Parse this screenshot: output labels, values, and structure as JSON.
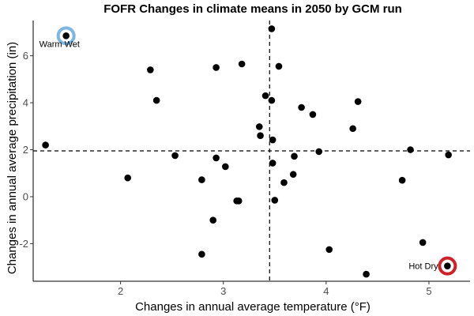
{
  "chart_data": {
    "type": "scatter",
    "title": "FOFR Changes in climate means in 2050 by GCM run",
    "xlabel": "Changes in annual average temperature (°F)",
    "ylabel": "Changes in annual average precipitation (in)",
    "xlim": [
      1.15,
      5.4
    ],
    "ylim": [
      -3.6,
      7.5
    ],
    "x_ticks": [
      2,
      3,
      4,
      5
    ],
    "y_ticks": [
      -2,
      0,
      2,
      4,
      6
    ],
    "x_tick_labels": [
      "2",
      "3",
      "4",
      "5"
    ],
    "y_tick_labels": [
      "-2",
      "0",
      "2",
      "4",
      "6"
    ],
    "grid": false,
    "reference_lines": {
      "vertical_x": 3.45,
      "horizontal_y": 1.95
    },
    "points": [
      {
        "x": 1.47,
        "y": 6.85
      },
      {
        "x": 1.27,
        "y": 2.2
      },
      {
        "x": 2.07,
        "y": 0.8
      },
      {
        "x": 2.29,
        "y": 5.4
      },
      {
        "x": 2.35,
        "y": 4.1
      },
      {
        "x": 2.53,
        "y": 1.75
      },
      {
        "x": 2.79,
        "y": 0.72
      },
      {
        "x": 2.79,
        "y": -2.45
      },
      {
        "x": 2.9,
        "y": -1.0
      },
      {
        "x": 2.93,
        "y": 5.5
      },
      {
        "x": 2.93,
        "y": 1.65
      },
      {
        "x": 3.02,
        "y": 1.28
      },
      {
        "x": 3.13,
        "y": -0.18
      },
      {
        "x": 3.15,
        "y": -0.18
      },
      {
        "x": 3.18,
        "y": 5.65
      },
      {
        "x": 3.35,
        "y": 2.98
      },
      {
        "x": 3.36,
        "y": 2.6
      },
      {
        "x": 3.41,
        "y": 4.3
      },
      {
        "x": 3.47,
        "y": 7.15
      },
      {
        "x": 3.47,
        "y": 4.1
      },
      {
        "x": 3.48,
        "y": 2.42
      },
      {
        "x": 3.48,
        "y": 1.43
      },
      {
        "x": 3.5,
        "y": -0.15
      },
      {
        "x": 3.54,
        "y": 5.55
      },
      {
        "x": 3.59,
        "y": 0.6
      },
      {
        "x": 3.68,
        "y": 0.95
      },
      {
        "x": 3.69,
        "y": 1.72
      },
      {
        "x": 3.76,
        "y": 3.8
      },
      {
        "x": 3.87,
        "y": 3.5
      },
      {
        "x": 3.93,
        "y": 1.92
      },
      {
        "x": 4.03,
        "y": -2.25
      },
      {
        "x": 4.26,
        "y": 2.9
      },
      {
        "x": 4.31,
        "y": 4.05
      },
      {
        "x": 4.39,
        "y": -3.3
      },
      {
        "x": 4.74,
        "y": 0.7
      },
      {
        "x": 4.82,
        "y": 2.0
      },
      {
        "x": 4.94,
        "y": -1.95
      },
      {
        "x": 5.18,
        "y": -2.95
      },
      {
        "x": 5.19,
        "y": 1.78
      }
    ],
    "highlights": [
      {
        "label": "Warm Wet",
        "x": 1.47,
        "y": 6.85,
        "color": "#7fb6e0"
      },
      {
        "label": "Hot Dry",
        "x": 5.18,
        "y": -2.95,
        "color": "#cc2229"
      }
    ],
    "point_color": "#000000"
  }
}
